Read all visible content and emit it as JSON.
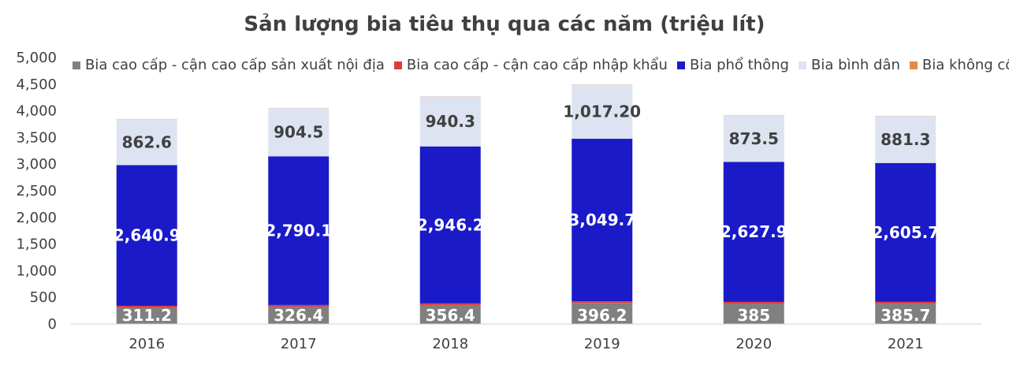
{
  "chart_data": {
    "type": "bar",
    "stacked": true,
    "title": "Sản lượng bia tiêu thụ qua các năm (triệu lít)",
    "categories": [
      "2016",
      "2017",
      "2018",
      "2019",
      "2020",
      "2021"
    ],
    "ylim": [
      0,
      5000
    ],
    "yticks": [
      "0",
      "500",
      "1,000",
      "1,500",
      "2,000",
      "2,500",
      "3,000",
      "3,500",
      "4,000",
      "4,500",
      "5,000"
    ],
    "grid": false,
    "legend_position": "top",
    "series": [
      {
        "name": "Bia cao cấp - cận cao cấp sản xuất nội địa",
        "color": "#808080",
        "values": [
          311.2,
          326.4,
          356.4,
          396.2,
          385,
          385.7
        ],
        "labels": [
          "311.2",
          "326.4",
          "356.4",
          "396.2",
          "385",
          "385.7"
        ],
        "label_color": "#ffffff"
      },
      {
        "name": "Bia cao cấp - cận cao cấp nhập khẩu",
        "color": "#e03a3a",
        "values": [
          30,
          30,
          30,
          30,
          30,
          30
        ],
        "labels": [
          "",
          "",
          "",
          "",
          "",
          ""
        ],
        "label_color": "#ffffff"
      },
      {
        "name": "Bia phổ thông",
        "color": "#1a1ac8",
        "values": [
          2640.9,
          2790.1,
          2946.2,
          3049.7,
          2627.9,
          2605.7
        ],
        "labels": [
          "2,640.9",
          "2,790.1",
          "2,946.2",
          "3,049.7",
          "2,627.9",
          "2,605.7"
        ],
        "label_color": "#ffffff"
      },
      {
        "name": "Bia bình dân",
        "color": "#dde3f0",
        "values": [
          862.6,
          904.5,
          940.3,
          1017.2,
          873.5,
          881.3
        ],
        "labels": [
          "862.6",
          "904.5",
          "940.3",
          "1,017.20",
          "873.5",
          "881.3"
        ],
        "label_color": "#404040"
      },
      {
        "name": "Bia không cồn",
        "color": "#e8894a",
        "values": [
          3,
          3,
          3,
          3,
          3,
          3
        ],
        "labels": [
          "",
          "",
          "",
          "",
          "",
          ""
        ],
        "label_color": "#404040"
      }
    ]
  }
}
